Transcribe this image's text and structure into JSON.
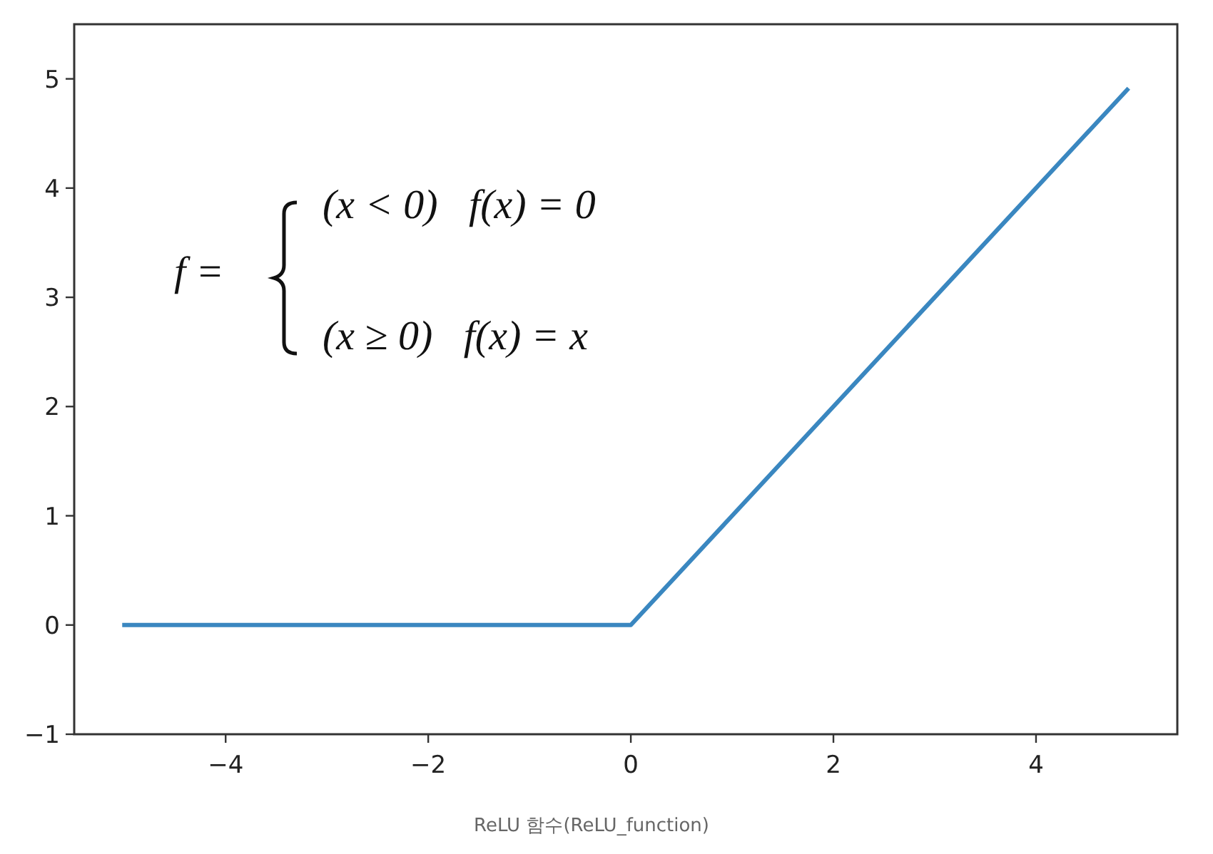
{
  "chart_data": {
    "type": "line",
    "xlabel": "ReLU 함수(ReLU_function)",
    "x": [
      -5,
      0,
      4.9
    ],
    "series": [
      {
        "color": "#3a87c0",
        "values": [
          0,
          0,
          4.9
        ]
      }
    ],
    "xlim": [
      -5.495,
      5.395
    ],
    "ylim": [
      -1,
      5.5
    ],
    "xticks": [
      -4,
      -2,
      0,
      2,
      4
    ],
    "yticks": [
      -1,
      0,
      1,
      2,
      3,
      4,
      5
    ],
    "grid": false,
    "annotations": [
      "f =",
      "(x < 0)   f(x) = 0",
      "(x ≥ 0)   f(x) = x"
    ]
  }
}
